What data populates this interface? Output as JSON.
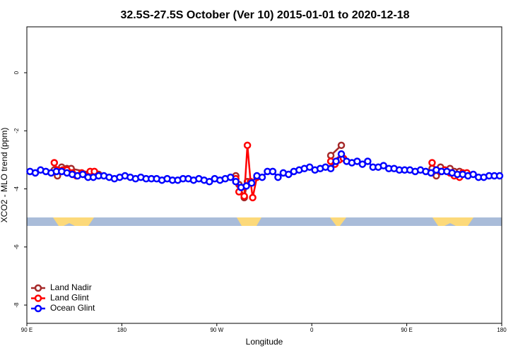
{
  "chart_data": {
    "type": "line",
    "title": "32.5S-27.5S October (Ver 10)   2015-01-01 to 2020-12-18",
    "x_label": "Longitude",
    "y_label": "XCO2 - MLO trend (ppm)",
    "xlim": [
      90,
      540
    ],
    "ylim": [
      -8.63,
      1.58
    ],
    "xticks": [
      {
        "value": 90,
        "label": "90 E"
      },
      180,
      {
        "value": 270,
        "label": "90 W"
      },
      {
        "value": 360,
        "label": "0"
      },
      {
        "value": 450,
        "label": "90 E"
      },
      {
        "value": 540,
        "label": "180"
      }
    ],
    "yticks": [
      0,
      -2,
      -4,
      -6,
      -8
    ],
    "legend": "bottom-left",
    "series": [
      {
        "name": "Land Nadir",
        "color": "#a52a2a",
        "x": [
          116,
          119,
          123,
          128,
          132,
          158,
          220,
          288,
          291,
          296,
          299,
          340,
          378,
          388,
          430,
          474,
          478,
          482,
          491,
          495,
          500
        ],
        "values": [
          -3.35,
          -3.55,
          -3.25,
          -3.3,
          -3.3,
          -3.5,
          null,
          -3.55,
          -3.85,
          -4.3,
          -3.75,
          null,
          -2.85,
          -2.5,
          null,
          -3.3,
          -3.55,
          -3.25,
          -3.3,
          -3.4,
          -3.4
        ]
      },
      {
        "name": "Land Glint",
        "color": "#ff0000",
        "x": [
          116,
          119,
          124,
          128,
          133,
          137,
          142,
          147,
          150,
          154,
          220,
          288,
          291,
          296,
          299,
          302,
          304,
          308,
          340,
          378,
          382,
          386,
          390,
          430,
          474,
          478,
          482,
          486,
          491,
          495,
          500,
          503,
          507
        ],
        "values": [
          -3.1,
          -3.35,
          -3.35,
          -3.35,
          -3.45,
          -3.55,
          -3.45,
          -3.55,
          -3.4,
          -3.4,
          null,
          -3.65,
          -4.1,
          -4.25,
          -2.5,
          -3.75,
          -4.3,
          -3.6,
          null,
          -3.05,
          -3.15,
          -3.0,
          -2.95,
          null,
          -3.1,
          -3.35,
          -3.4,
          -3.35,
          -3.45,
          -3.55,
          -3.6,
          -3.45,
          -3.45
        ]
      },
      {
        "name": "Ocean Glint",
        "color": "#0000ff",
        "x": [
          93,
          98,
          103,
          108,
          113,
          118,
          123,
          128,
          133,
          138,
          143,
          148,
          153,
          158,
          163,
          168,
          173,
          178,
          183,
          188,
          193,
          198,
          203,
          208,
          213,
          218,
          223,
          228,
          233,
          238,
          243,
          248,
          253,
          258,
          263,
          268,
          273,
          278,
          283,
          288,
          293,
          298,
          303,
          308,
          313,
          318,
          323,
          328,
          333,
          338,
          343,
          348,
          353,
          358,
          363,
          368,
          373,
          378,
          383,
          388,
          393,
          398,
          403,
          408,
          413,
          418,
          423,
          428,
          433,
          438,
          443,
          448,
          453,
          458,
          463,
          468,
          473,
          478,
          483,
          488,
          493,
          498,
          503,
          508,
          513,
          518,
          523,
          528,
          533,
          538
        ],
        "values": [
          -3.4,
          -3.45,
          -3.35,
          -3.4,
          -3.45,
          -3.4,
          -3.4,
          -3.45,
          -3.5,
          -3.55,
          -3.5,
          -3.6,
          -3.6,
          -3.55,
          -3.55,
          -3.6,
          -3.65,
          -3.6,
          -3.55,
          -3.6,
          -3.65,
          -3.6,
          -3.65,
          -3.65,
          -3.65,
          -3.7,
          -3.65,
          -3.7,
          -3.7,
          -3.65,
          -3.65,
          -3.7,
          -3.65,
          -3.7,
          -3.75,
          -3.65,
          -3.7,
          -3.65,
          -3.6,
          -3.75,
          -3.95,
          -3.9,
          -3.8,
          -3.55,
          -3.6,
          -3.4,
          -3.4,
          -3.6,
          -3.45,
          -3.5,
          -3.4,
          -3.35,
          -3.3,
          -3.25,
          -3.35,
          -3.3,
          -3.25,
          -3.3,
          -3.05,
          -2.8,
          -3.05,
          -3.1,
          -3.05,
          -3.15,
          -3.05,
          -3.25,
          -3.25,
          -3.2,
          -3.3,
          -3.3,
          -3.35,
          -3.35,
          -3.35,
          -3.4,
          -3.35,
          -3.4,
          -3.45,
          -3.35,
          -3.4,
          -3.4,
          -3.45,
          -3.5,
          -3.5,
          -3.55,
          -3.5,
          -3.6,
          -3.6,
          -3.55,
          -3.55,
          -3.55
        ]
      }
    ]
  }
}
